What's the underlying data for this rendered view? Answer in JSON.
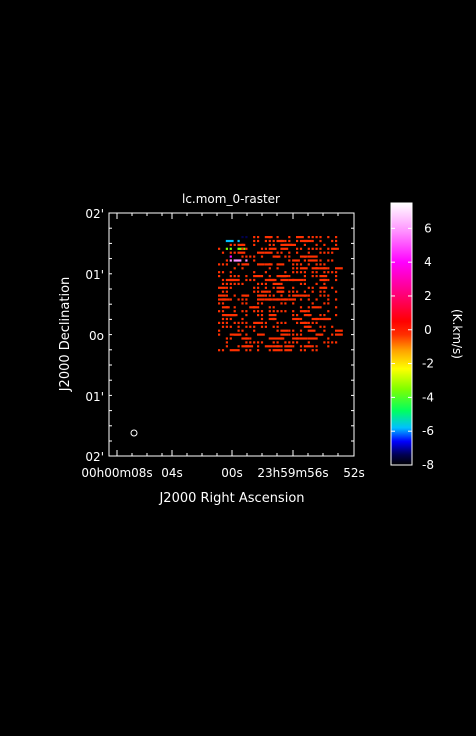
{
  "chart_data": {
    "type": "heatmap",
    "title": "lc.mom_0-raster",
    "xlabel": "J2000 Right Ascension",
    "ylabel": "J2000 Declination",
    "x_ticks": [
      "00h00m08s",
      "04s",
      "00s",
      "23h59m56s",
      "52s"
    ],
    "y_ticks": [
      "02'",
      "01'",
      "0o",
      "01'",
      "02'"
    ],
    "colorbar": {
      "label": "(K.km/s)",
      "range": [
        -8,
        7.5
      ],
      "ticks": [
        "6",
        "4",
        "2",
        "0",
        "-2",
        "-4",
        "-6",
        "-8"
      ],
      "tick_values": [
        6,
        4,
        2,
        0,
        -2,
        -4,
        -6,
        -8
      ],
      "colormap_stops": [
        {
          "v": -8,
          "c": "#000000"
        },
        {
          "v": -7.4,
          "c": "#000050"
        },
        {
          "v": -6.6,
          "c": "#0000ff"
        },
        {
          "v": -5.8,
          "c": "#00c0ff"
        },
        {
          "v": -4.8,
          "c": "#00ff60"
        },
        {
          "v": -3.5,
          "c": "#80ff00"
        },
        {
          "v": -2.3,
          "c": "#ffff00"
        },
        {
          "v": -1.2,
          "c": "#ffa000"
        },
        {
          "v": -0.3,
          "c": "#ff3000"
        },
        {
          "v": 0.5,
          "c": "#ff0000"
        },
        {
          "v": 2.2,
          "c": "#ff0080"
        },
        {
          "v": 4.0,
          "c": "#ff00ff"
        },
        {
          "v": 5.8,
          "c": "#ff90ff"
        },
        {
          "v": 7.5,
          "c": "#ffffff"
        }
      ]
    },
    "beam_marker": "ellipse lower-left",
    "grid": false,
    "note_values": "map values mostly near 0 K.km/s (red), with a few negative and high-value pixels near the top-left corner of the mapped region"
  }
}
